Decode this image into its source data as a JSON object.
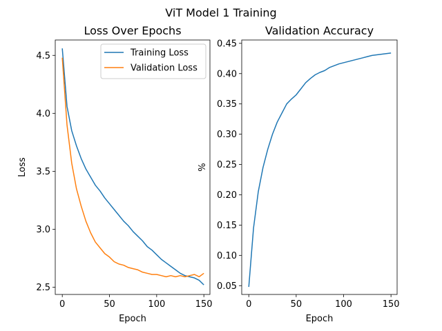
{
  "suptitle": "ViT Model 1 Training",
  "chart_data": [
    {
      "type": "line",
      "title": "Loss Over Epochs",
      "xlabel": "Epoch",
      "ylabel": "Loss",
      "xlim": [
        -7.45,
        156.45
      ],
      "ylim": [
        2.4375,
        4.6325
      ],
      "xticks": [
        0,
        50,
        100,
        150
      ],
      "yticks": [
        2.5,
        3.0,
        3.5,
        4.0,
        4.5
      ],
      "grid": false,
      "legend": "top-right",
      "series": [
        {
          "name": "Training Loss",
          "color": "#1f77b4",
          "x_start": 0,
          "x_step": 5,
          "values": [
            4.56,
            4.06,
            3.85,
            3.72,
            3.61,
            3.52,
            3.45,
            3.38,
            3.33,
            3.27,
            3.22,
            3.17,
            3.12,
            3.07,
            3.03,
            2.98,
            2.94,
            2.9,
            2.85,
            2.82,
            2.78,
            2.74,
            2.71,
            2.68,
            2.65,
            2.62,
            2.6,
            2.59,
            2.58,
            2.56,
            2.52
          ]
        },
        {
          "name": "Validation Loss",
          "color": "#ff7f0e",
          "x_start": 0,
          "x_step": 5,
          "values": [
            4.48,
            3.9,
            3.57,
            3.35,
            3.2,
            3.07,
            2.97,
            2.89,
            2.84,
            2.79,
            2.76,
            2.72,
            2.7,
            2.69,
            2.67,
            2.66,
            2.65,
            2.63,
            2.62,
            2.61,
            2.61,
            2.6,
            2.59,
            2.6,
            2.59,
            2.6,
            2.59,
            2.6,
            2.61,
            2.59,
            2.62
          ]
        }
      ]
    },
    {
      "type": "line",
      "title": "Validation Accuracy",
      "xlabel": "Epoch",
      "ylabel": "%",
      "xlim": [
        -7.45,
        156.45
      ],
      "ylim": [
        0.0355,
        0.4555
      ],
      "xticks": [
        0,
        50,
        100,
        150
      ],
      "yticks": [
        0.05,
        0.1,
        0.15,
        0.2,
        0.25,
        0.3,
        0.35,
        0.4,
        0.45
      ],
      "grid": false,
      "series": [
        {
          "color": "#1f77b4",
          "x_start": 0,
          "x_step": 5,
          "values": [
            0.048,
            0.145,
            0.205,
            0.245,
            0.275,
            0.3,
            0.32,
            0.335,
            0.35,
            0.358,
            0.365,
            0.375,
            0.385,
            0.392,
            0.398,
            0.402,
            0.405,
            0.41,
            0.413,
            0.416,
            0.418,
            0.42,
            0.422,
            0.424,
            0.426,
            0.428,
            0.43,
            0.431,
            0.432,
            0.433,
            0.434
          ]
        }
      ]
    }
  ]
}
